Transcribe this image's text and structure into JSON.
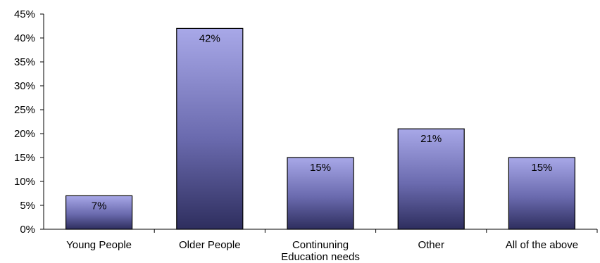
{
  "chart_data": {
    "type": "bar",
    "categories": [
      "Young People",
      "Older People",
      "Continuning\nEducation needs",
      "Other",
      "All of the above"
    ],
    "values": [
      7,
      42,
      15,
      21,
      15
    ],
    "data_labels": [
      "7%",
      "42%",
      "15%",
      "21%",
      "15%"
    ],
    "ylim": [
      0,
      45
    ],
    "yticks": [
      0,
      5,
      10,
      15,
      20,
      25,
      30,
      35,
      40,
      45
    ],
    "ytick_labels": [
      "0%",
      "5%",
      "10%",
      "15%",
      "20%",
      "25%",
      "30%",
      "35%",
      "40%",
      "45%"
    ],
    "grid": false,
    "legend": "none",
    "colors": {
      "bar_top": "#a8a8e8",
      "bar_bottom": "#2e2e5e",
      "outline": "#000000"
    }
  }
}
